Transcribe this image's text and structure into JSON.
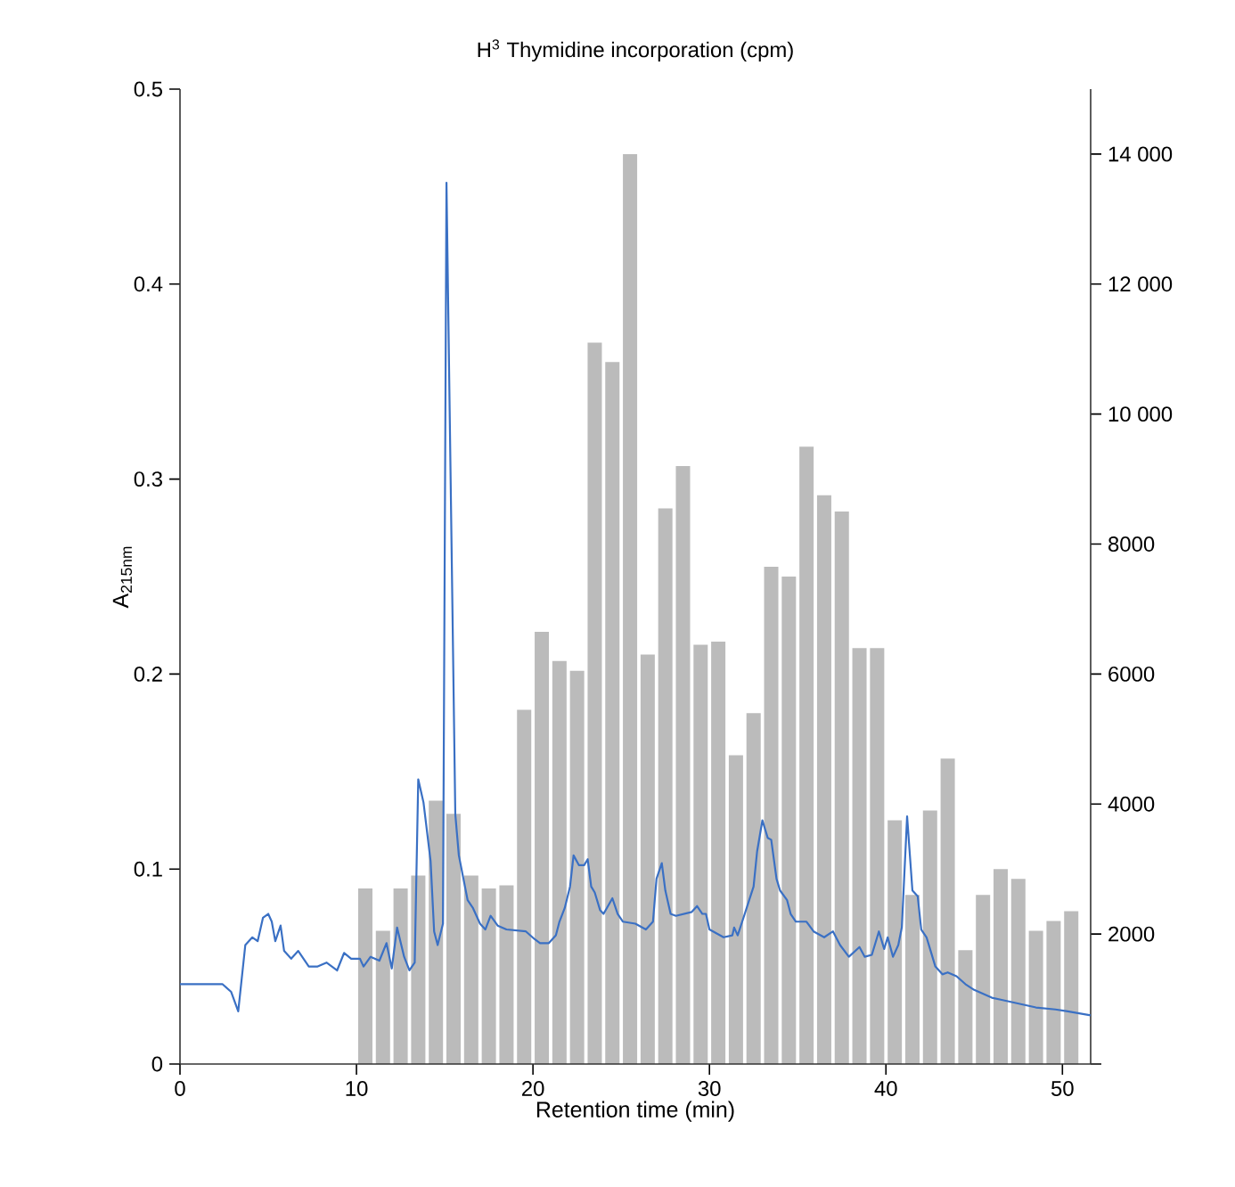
{
  "chart_data": {
    "type": "bar",
    "title": "H$^{3}$ Thymidine incorporation (cpm)",
    "xlabel": "Retention time (min)",
    "ylabel": "A$_{215nm}$",
    "xlim": [
      0,
      51.6
    ],
    "xticks": [
      0,
      10,
      20,
      30,
      40,
      50
    ],
    "ylim": [
      0,
      0.5
    ],
    "yticks": [
      0,
      0.1,
      0.2,
      0.3,
      0.4,
      0.5
    ],
    "y2lim": [
      0,
      15000
    ],
    "y2ticks": [
      {
        "value": 0,
        "label": null
      },
      2000,
      4000,
      6000,
      8000,
      {
        "value": 10000,
        "label": "10 000"
      },
      {
        "value": 12000,
        "label": "12 000"
      },
      {
        "value": 14000,
        "label": "14 000"
      }
    ],
    "series": [
      {
        "axis": "y2",
        "color": "#bbbbbb",
        "x": [
          10.5,
          11.5,
          12.5,
          13.5,
          14.5,
          15.5,
          16.5,
          17.5,
          18.5,
          19.5,
          20.5,
          21.5,
          22.5,
          23.5,
          24.5,
          25.5,
          26.5,
          27.5,
          28.5,
          29.5,
          30.5,
          31.5,
          32.5,
          33.5,
          34.5,
          35.5,
          36.5,
          37.5,
          38.5,
          39.5,
          40.5,
          41.5,
          42.5,
          43.5,
          44.5,
          45.5,
          46.5,
          47.5,
          48.5,
          49.5,
          50.5
        ],
        "values": [
          2700,
          2050,
          2700,
          2900,
          4050,
          3850,
          2900,
          2700,
          2750,
          5450,
          6650,
          6200,
          6050,
          11100,
          10800,
          14000,
          6300,
          8550,
          9200,
          6450,
          6500,
          4750,
          5400,
          7650,
          7500,
          9500,
          8750,
          8500,
          6400,
          6400,
          3750,
          2600,
          3900,
          4700,
          1750,
          2600,
          3000,
          2850,
          2050,
          2200,
          2350
        ]
      },
      {
        "type": "line",
        "color": "#3a70c4",
        "x": [
          0,
          2.4,
          2.9,
          3.3,
          3.7,
          4.1,
          4.4,
          4.7,
          5.0,
          5.2,
          5.4,
          5.7,
          5.9,
          6.3,
          6.7,
          7.0,
          7.3,
          7.8,
          8.3,
          8.9,
          9.3,
          9.7,
          10.2,
          10.4,
          10.8,
          11.3,
          11.7,
          12.0,
          12.3,
          12.7,
          13.0,
          13.3,
          13.5,
          13.8,
          14.2,
          14.4,
          14.6,
          14.9,
          15.1,
          15.6,
          15.8,
          16.3,
          16.6,
          17.0,
          17.3,
          17.6,
          18.0,
          18.5,
          19.6,
          20.1,
          20.4,
          20.9,
          21.3,
          21.5,
          21.8,
          22.1,
          22.3,
          22.6,
          22.9,
          23.1,
          23.3,
          23.5,
          23.8,
          24.0,
          24.5,
          24.8,
          25.1,
          25.8,
          26.4,
          26.8,
          27.0,
          27.3,
          27.5,
          27.8,
          28.1,
          29.0,
          29.3,
          29.6,
          29.8,
          30.0,
          30.8,
          31.3,
          31.4,
          31.6,
          32.0,
          32.5,
          32.7,
          33.0,
          33.3,
          33.5,
          33.8,
          34.0,
          34.4,
          34.6,
          34.9,
          35.5,
          35.9,
          36.5,
          37.0,
          37.4,
          37.9,
          38.5,
          38.8,
          39.2,
          39.6,
          39.9,
          40.1,
          40.4,
          40.7,
          40.9,
          41.2,
          41.5,
          41.8,
          42.0,
          42.3,
          42.5,
          42.8,
          43.2,
          43.5,
          44.0,
          44.5,
          45.0,
          46.0,
          46.5,
          47.5,
          48.5,
          49.6,
          50.3,
          51.6
        ],
        "values": [
          0.041,
          0.041,
          0.037,
          0.027,
          0.061,
          0.065,
          0.063,
          0.075,
          0.077,
          0.073,
          0.063,
          0.071,
          0.058,
          0.054,
          0.058,
          0.054,
          0.05,
          0.05,
          0.052,
          0.048,
          0.057,
          0.054,
          0.054,
          0.05,
          0.055,
          0.053,
          0.062,
          0.049,
          0.07,
          0.055,
          0.048,
          0.052,
          0.146,
          0.134,
          0.104,
          0.068,
          0.061,
          0.072,
          0.452,
          0.128,
          0.107,
          0.084,
          0.08,
          0.072,
          0.069,
          0.076,
          0.071,
          0.069,
          0.068,
          0.064,
          0.062,
          0.062,
          0.066,
          0.073,
          0.08,
          0.091,
          0.107,
          0.102,
          0.102,
          0.105,
          0.091,
          0.088,
          0.079,
          0.077,
          0.085,
          0.077,
          0.073,
          0.072,
          0.069,
          0.073,
          0.095,
          0.103,
          0.089,
          0.077,
          0.076,
          0.078,
          0.081,
          0.077,
          0.077,
          0.069,
          0.065,
          0.066,
          0.07,
          0.066,
          0.077,
          0.091,
          0.109,
          0.125,
          0.116,
          0.115,
          0.095,
          0.089,
          0.084,
          0.077,
          0.073,
          0.073,
          0.068,
          0.065,
          0.068,
          0.061,
          0.055,
          0.06,
          0.055,
          0.056,
          0.068,
          0.059,
          0.065,
          0.055,
          0.061,
          0.07,
          0.127,
          0.089,
          0.086,
          0.069,
          0.065,
          0.059,
          0.05,
          0.046,
          0.047,
          0.045,
          0.041,
          0.038,
          0.034,
          0.033,
          0.031,
          0.029,
          0.028,
          0.027,
          0.025
        ]
      }
    ]
  }
}
